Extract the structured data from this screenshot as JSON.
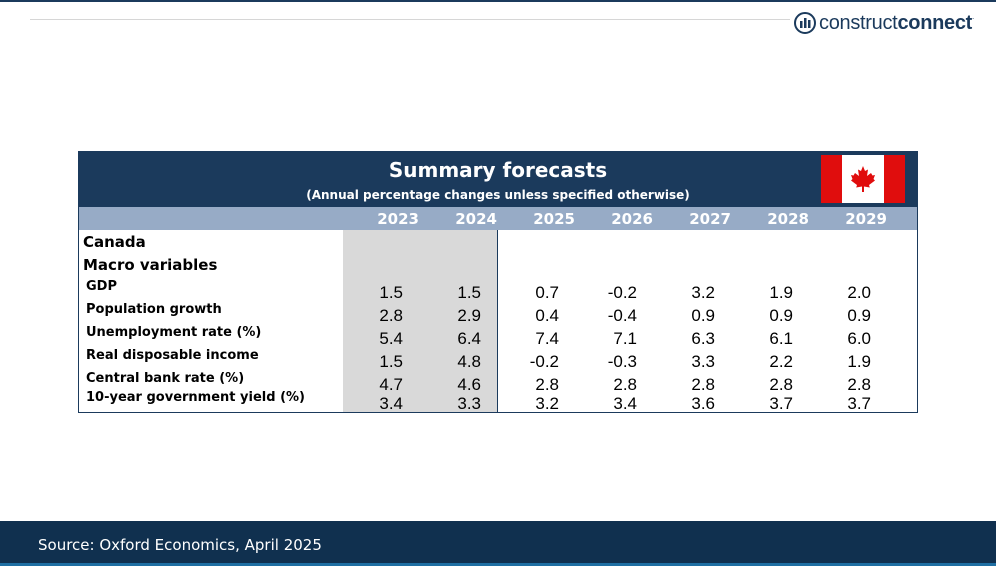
{
  "brand": {
    "light": "construct",
    "bold": "connect",
    "reg": "."
  },
  "table": {
    "title": "Summary forecasts",
    "subtitle": "(Annual percentage changes unless specified otherwise)",
    "years": [
      "2023",
      "2024",
      "2025",
      "2026",
      "2027",
      "2028",
      "2029"
    ],
    "section_country": "Canada",
    "section_group": "Macro variables",
    "rows": [
      {
        "label": "GDP",
        "values": [
          "1.5",
          "1.5",
          "0.7",
          "-0.2",
          "3.2",
          "1.9",
          "2.0"
        ]
      },
      {
        "label": "Population growth",
        "values": [
          "2.8",
          "2.9",
          "0.4",
          "-0.4",
          "0.9",
          "0.9",
          "0.9"
        ]
      },
      {
        "label": "Unemployment rate (%)",
        "values": [
          "5.4",
          "6.4",
          "7.4",
          "7.1",
          "6.3",
          "6.1",
          "6.0"
        ]
      },
      {
        "label": "Real disposable income",
        "values": [
          "1.5",
          "4.8",
          "-0.2",
          "-0.3",
          "3.3",
          "2.2",
          "1.9"
        ]
      },
      {
        "label": "Central bank rate (%)",
        "values": [
          "4.7",
          "4.6",
          "2.8",
          "2.8",
          "2.8",
          "2.8",
          "2.8"
        ]
      },
      {
        "label": "10-year government yield (%)",
        "values": [
          "3.4",
          "3.3",
          "3.2",
          "3.4",
          "3.6",
          "3.7",
          "3.7"
        ]
      }
    ]
  },
  "footer": {
    "source": "Source: Oxford Economics, April 2025"
  },
  "colors": {
    "navy": "#1b3a5c",
    "year_band": "#97abc6",
    "actuals_shade": "#d9d9d9",
    "flag_red": "#e00d0d"
  }
}
